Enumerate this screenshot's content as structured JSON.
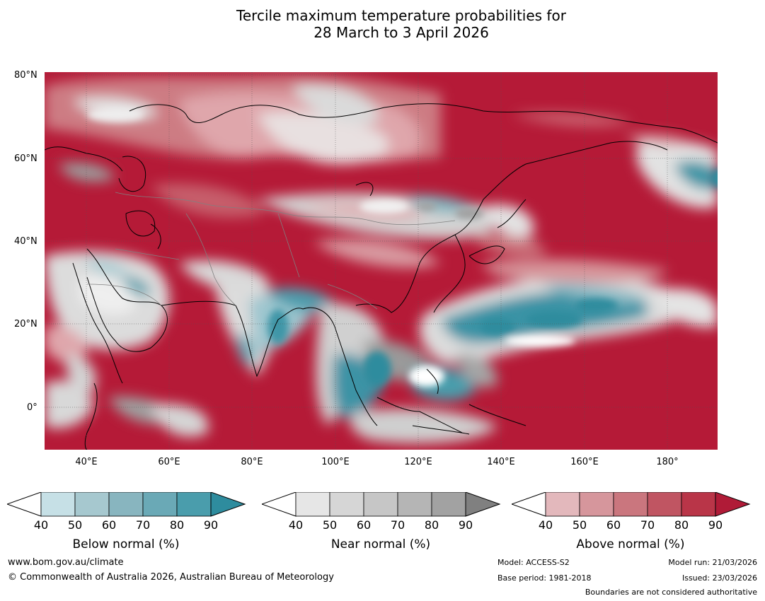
{
  "title_line1": "Tercile maximum temperature probabilities for",
  "title_line2": "28 March to 3 April 2026",
  "lat_labels": [
    "80°N",
    "60°N",
    "40°N",
    "20°N",
    "0°"
  ],
  "lon_labels": [
    "40°E",
    "60°E",
    "80°E",
    "100°E",
    "120°E",
    "140°E",
    "160°E",
    "180°"
  ],
  "legends": [
    {
      "name": "below",
      "title": "Below normal (%)",
      "ticks": [
        "40",
        "50",
        "60",
        "70",
        "80",
        "90"
      ],
      "colors": [
        "#c6e0e6",
        "#a6c8cf",
        "#88b5bf",
        "#6aa9b6",
        "#4a9dac",
        "#2e8c9e"
      ]
    },
    {
      "name": "near",
      "title": "Near normal (%)",
      "ticks": [
        "40",
        "50",
        "60",
        "70",
        "80",
        "90"
      ],
      "colors": [
        "#e6e6e6",
        "#d6d6d6",
        "#c6c6c6",
        "#b5b5b5",
        "#a2a2a2",
        "#808080"
      ]
    },
    {
      "name": "above",
      "title": "Above normal (%)",
      "ticks": [
        "40",
        "50",
        "60",
        "70",
        "80",
        "90"
      ],
      "colors": [
        "#e3b8bc",
        "#d6969c",
        "#ca767e",
        "#c05562",
        "#b93548",
        "#b01b37"
      ]
    }
  ],
  "footer": {
    "url": "www.bom.gov.au/climate",
    "copyright": "© Commonwealth of Australia 2026, Australian Bureau of Meteorology",
    "model": "Model: ACCESS-S2",
    "base_period": "Base period: 1981-2018",
    "model_run": "Model run: 21/03/2026",
    "issued": "Issued: 23/03/2026",
    "boundaries": "Boundaries are not considered authoritative"
  }
}
